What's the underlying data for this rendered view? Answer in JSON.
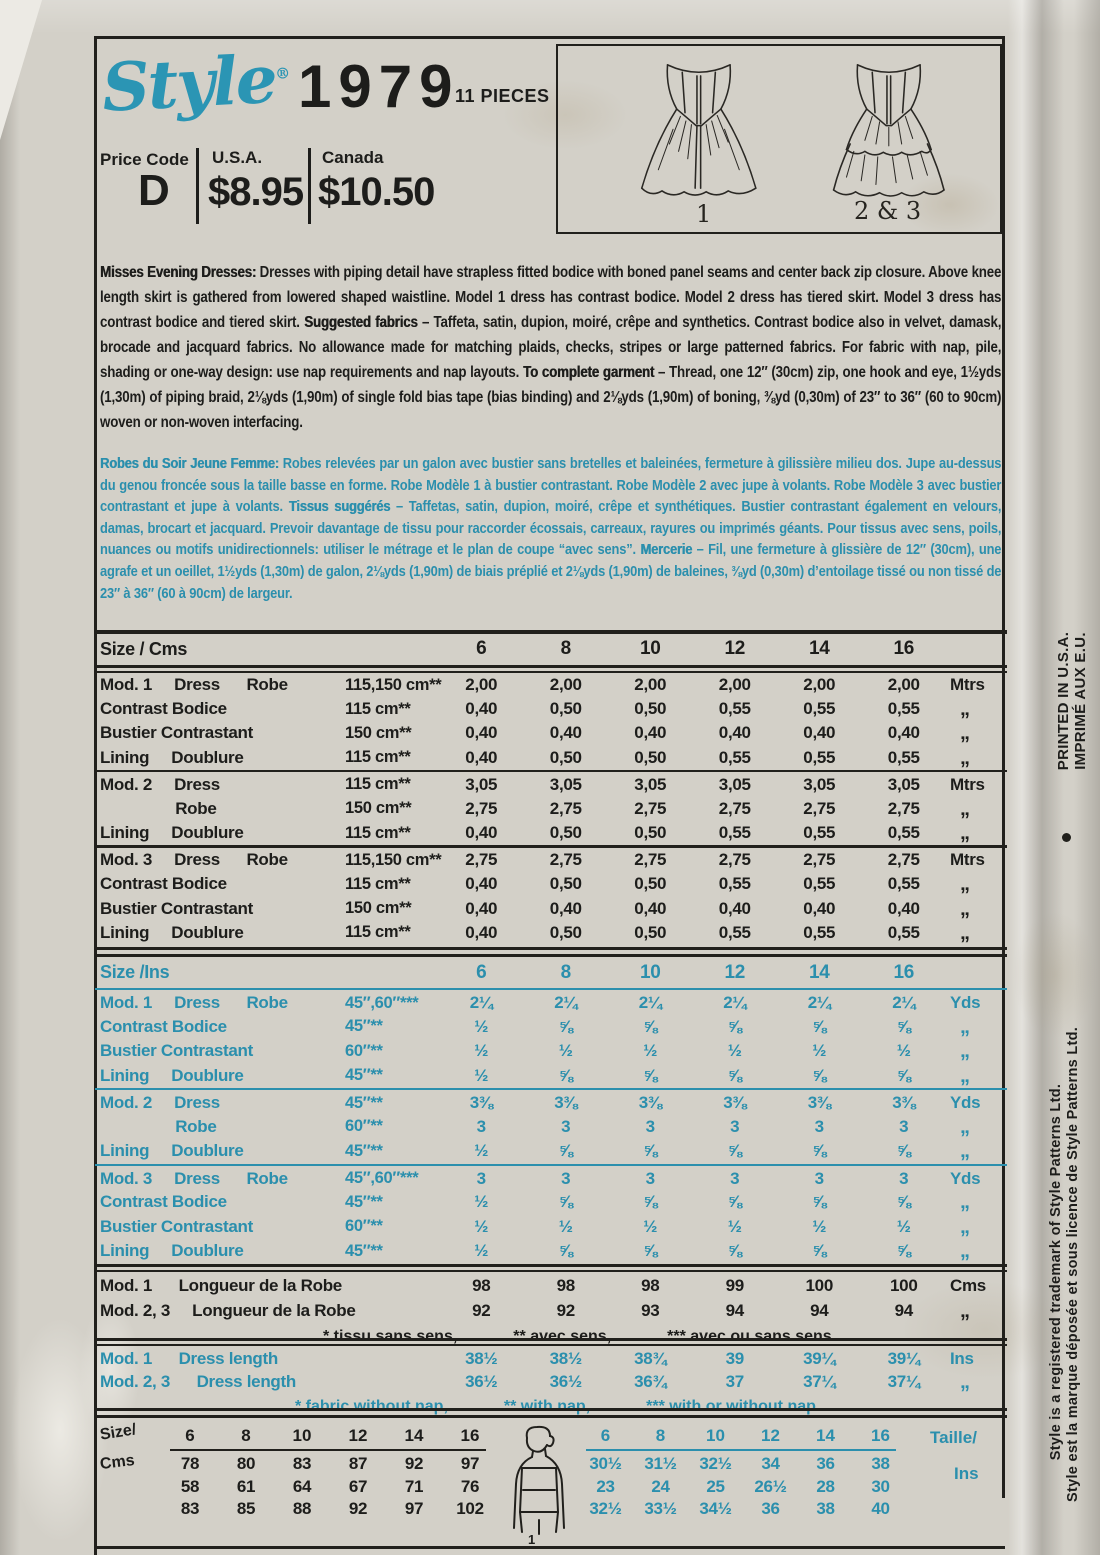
{
  "header": {
    "brand": "Style",
    "registered": "®",
    "number": "1979",
    "pieces": "11 PIECES",
    "price_code_label": "Price Code",
    "price_code": "D",
    "usa_label": "U.S.A.",
    "usa_price": "$8.95",
    "canada_label": "Canada",
    "canada_price": "$10.50"
  },
  "views": {
    "view1": "1",
    "view23": "2 & 3"
  },
  "desc_en": {
    "lead": "Misses Evening Dresses:",
    "t1": " Dresses with piping detail have strapless fitted bodice with boned panel seams and center back zip closure. Above knee length skirt is gathered from lowered shaped waistline. Model 1 dress has contrast bodice. Model 2 dress has tiered skirt. Model 3 dress has contrast bodice and tiered skirt. ",
    "b2": "Suggested fabrics",
    "t2": " – Taffeta, satin, dupion, moiré, crêpe and synthetics. Contrast bodice also in velvet, damask, brocade and jacquard fabrics. No allowance made for matching plaids, checks, stripes or large patterned fabrics. For fabric with nap, pile, shading or one-way design: use nap requirements and nap layouts. ",
    "b3": "To complete garment",
    "t3": " – Thread, one 12″ (30cm) zip, one hook and eye, 1½yds (1,30m) of piping braid, 2⅛yds (1,90m) of single fold bias tape (bias binding) and 2⅛yds (1,90m) of boning, ⅜yd (0,30m) of 23″ to 36″ (60 to 90cm) woven or non-woven interfacing."
  },
  "desc_fr": {
    "lead": "Robes du Soir Jeune Femme:",
    "t1": " Robes relevées par un galon avec bustier sans bretelles et baleinées, fermeture à gilissière milieu dos. Jupe au-dessus du genou froncée sous la taille basse en forme. Robe Modèle 1 à bustier contrastant. Robe Modèle 2 avec jupe à volants. Robe Modèle 3 avec bustier contrastant et jupe à volants. ",
    "b2": "Tissus suggérés",
    "t2": " – Taffetas, satin, dupion, moiré, crêpe et synthétiques. Bustier contrastant également en velours, damas, brocart et jacquard. Prevoir davantage de tissu pour raccorder écossais, carreaux, rayures ou imprimés géants. Pour tissus avec sens, poils, nuances ou motifs unidirectionnels: utiliser le métrage et le plan de coupe “avec sens”. ",
    "b3": "Mercerie",
    "t3": " – Fil, une fermeture à glissière de 12″ (30cm), une agrafe et un oeillet, 1½yds (1,30m) de galon, 2⅛yds (1,90m) de biais préplié et 2⅛yds (1,90m) de baleines, ⅜yd (0,30m) d’entoilage tissé ou non tissé de 23″ à 36″ (60 à 90cm) de largeur."
  },
  "metric_table": {
    "title": "Size / Cms",
    "sizes": [
      "6",
      "8",
      "10",
      "12",
      "14",
      "16"
    ],
    "groups": [
      {
        "rows": [
          {
            "label": "Mod. 1     Dress      Robe",
            "width": "115,150 cm**",
            "values": [
              "2,00",
              "2,00",
              "2,00",
              "2,00",
              "2,00",
              "2,00"
            ],
            "unit": "Mtrs"
          },
          {
            "label": "Contrast Bodice",
            "width": "115 cm**",
            "values": [
              "0,40",
              "0,50",
              "0,50",
              "0,55",
              "0,55",
              "0,55"
            ],
            "unit": "„"
          },
          {
            "label": "Bustier Contrastant",
            "width": "150 cm**",
            "values": [
              "0,40",
              "0,40",
              "0,40",
              "0,40",
              "0,40",
              "0,40"
            ],
            "unit": "„"
          },
          {
            "label": "Lining     Doublure",
            "width": "115 cm**",
            "values": [
              "0,40",
              "0,50",
              "0,50",
              "0,55",
              "0,55",
              "0,55"
            ],
            "unit": "„"
          }
        ]
      },
      {
        "rows": [
          {
            "label": "Mod. 2     Dress",
            "width": "115 cm**",
            "values": [
              "3,05",
              "3,05",
              "3,05",
              "3,05",
              "3,05",
              "3,05"
            ],
            "unit": "Mtrs"
          },
          {
            "label": "                 Robe",
            "width": "150 cm**",
            "values": [
              "2,75",
              "2,75",
              "2,75",
              "2,75",
              "2,75",
              "2,75"
            ],
            "unit": "„"
          },
          {
            "label": "Lining     Doublure",
            "width": "115 cm**",
            "values": [
              "0,40",
              "0,50",
              "0,50",
              "0,55",
              "0,55",
              "0,55"
            ],
            "unit": "„"
          }
        ]
      },
      {
        "rows": [
          {
            "label": "Mod. 3     Dress      Robe",
            "width": "115,150 cm**",
            "values": [
              "2,75",
              "2,75",
              "2,75",
              "2,75",
              "2,75",
              "2,75"
            ],
            "unit": "Mtrs"
          },
          {
            "label": "Contrast Bodice",
            "width": "115 cm**",
            "values": [
              "0,40",
              "0,50",
              "0,50",
              "0,55",
              "0,55",
              "0,55"
            ],
            "unit": "„"
          },
          {
            "label": "Bustier Contrastant",
            "width": "150 cm**",
            "values": [
              "0,40",
              "0,40",
              "0,40",
              "0,40",
              "0,40",
              "0,40"
            ],
            "unit": "„"
          },
          {
            "label": "Lining     Doublure",
            "width": "115 cm**",
            "values": [
              "0,40",
              "0,50",
              "0,50",
              "0,55",
              "0,55",
              "0,55"
            ],
            "unit": "„"
          }
        ]
      }
    ]
  },
  "inches_table": {
    "title": "Size /Ins",
    "sizes": [
      "6",
      "8",
      "10",
      "12",
      "14",
      "16"
    ],
    "groups": [
      {
        "rows": [
          {
            "label": "Mod. 1     Dress      Robe",
            "width": "45″,60″***",
            "values": [
              "2¼",
              "2¼",
              "2¼",
              "2¼",
              "2¼",
              "2¼"
            ],
            "unit": "Yds"
          },
          {
            "label": "Contrast Bodice",
            "width": "45″**",
            "values": [
              "½",
              "⅝",
              "⅝",
              "⅝",
              "⅝",
              "⅝"
            ],
            "unit": "„"
          },
          {
            "label": "Bustier Contrastant",
            "width": "60″**",
            "values": [
              "½",
              "½",
              "½",
              "½",
              "½",
              "½"
            ],
            "unit": "„"
          },
          {
            "label": "Lining     Doublure",
            "width": "45″**",
            "values": [
              "½",
              "⅝",
              "⅝",
              "⅝",
              "⅝",
              "⅝"
            ],
            "unit": "„"
          }
        ]
      },
      {
        "rows": [
          {
            "label": "Mod. 2     Dress",
            "width": "45″**",
            "values": [
              "3⅜",
              "3⅜",
              "3⅜",
              "3⅜",
              "3⅜",
              "3⅜"
            ],
            "unit": "Yds"
          },
          {
            "label": "                 Robe",
            "width": "60″**",
            "values": [
              "3",
              "3",
              "3",
              "3",
              "3",
              "3"
            ],
            "unit": "„"
          },
          {
            "label": "Lining     Doublure",
            "width": "45″**",
            "values": [
              "½",
              "⅝",
              "⅝",
              "⅝",
              "⅝",
              "⅝"
            ],
            "unit": "„"
          }
        ]
      },
      {
        "rows": [
          {
            "label": "Mod. 3     Dress      Robe",
            "width": "45″,60″***",
            "values": [
              "3",
              "3",
              "3",
              "3",
              "3",
              "3"
            ],
            "unit": "Yds"
          },
          {
            "label": "Contrast Bodice",
            "width": "45″**",
            "values": [
              "½",
              "⅝",
              "⅝",
              "⅝",
              "⅝",
              "⅝"
            ],
            "unit": "„"
          },
          {
            "label": "Bustier Contrastant",
            "width": "60″**",
            "values": [
              "½",
              "½",
              "½",
              "½",
              "½",
              "½"
            ],
            "unit": "„"
          },
          {
            "label": "Lining     Doublure",
            "width": "45″**",
            "values": [
              "½",
              "⅝",
              "⅝",
              "⅝",
              "⅝",
              "⅝"
            ],
            "unit": "„"
          }
        ]
      }
    ]
  },
  "length_cm": {
    "rows": [
      {
        "label": "Mod. 1      Longueur de la Robe",
        "values": [
          "98",
          "98",
          "98",
          "99",
          "100",
          "100"
        ],
        "unit": "Cms"
      },
      {
        "label": "Mod. 2, 3     Longueur de la Robe",
        "values": [
          "92",
          "92",
          "93",
          "94",
          "94",
          "94"
        ],
        "unit": "„"
      }
    ],
    "footnotes": [
      "* tissu sans sens,",
      "** avec sens,",
      "*** avec ou sans sens"
    ]
  },
  "length_in": {
    "rows": [
      {
        "label": "Mod. 1      Dress length",
        "values": [
          "38½",
          "38½",
          "38¾",
          "39",
          "39¼",
          "39¼"
        ],
        "unit": "Ins"
      },
      {
        "label": "Mod. 2, 3      Dress length",
        "values": [
          "36½",
          "36½",
          "36¾",
          "37",
          "37¼",
          "37¼"
        ],
        "unit": "„"
      }
    ],
    "footnotes": [
      "* fabric without nap,",
      "** with nap,",
      "*** with or without nap"
    ]
  },
  "bottom": {
    "size_label": "Size/",
    "cm_label": "Cms",
    "sizes": [
      "6",
      "8",
      "10",
      "12",
      "14",
      "16"
    ],
    "cm_rows": [
      [
        "78",
        "80",
        "83",
        "87",
        "92",
        "97"
      ],
      [
        "58",
        "61",
        "64",
        "67",
        "71",
        "76"
      ],
      [
        "83",
        "85",
        "88",
        "92",
        "97",
        "102"
      ]
    ],
    "figure_label": "1",
    "in_rows": [
      [
        "30½",
        "31½",
        "32½",
        "34",
        "36",
        "38"
      ],
      [
        "23",
        "24",
        "25",
        "26½",
        "28",
        "30"
      ],
      [
        "32½",
        "33½",
        "34½",
        "36",
        "38",
        "40"
      ]
    ],
    "taille_label": "Taille/",
    "ins_label": "Ins"
  },
  "margin_texts": {
    "printed": "PRINTED IN U.S.A.",
    "imprime": "IMPRIMÉ AUX E.U.",
    "trademark_en": "Style is a registered trademark of Style Patterns Ltd.",
    "trademark_fr": "Style est la marque déposée et sous licence de Style Patterns Ltd."
  },
  "colors": {
    "teal": "#2b8fad",
    "ink": "#1d1d1b",
    "paper": "#d3d0c8"
  }
}
